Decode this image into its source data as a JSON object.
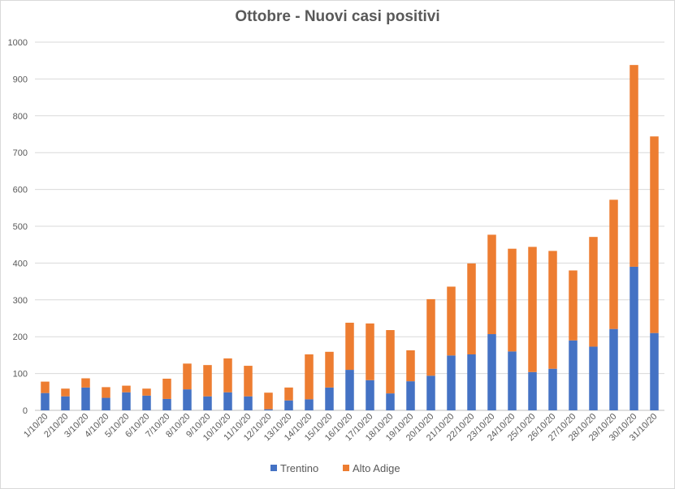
{
  "chart_data": {
    "type": "bar",
    "stacked": true,
    "title": "Ottobre - Nuovi casi positivi",
    "xlabel": "",
    "ylabel": "",
    "ylim": [
      0,
      1000
    ],
    "yticks": [
      0,
      100,
      200,
      300,
      400,
      500,
      600,
      700,
      800,
      900,
      1000
    ],
    "grid": true,
    "legend_position": "bottom",
    "categories": [
      "1/10/20",
      "2/10/20",
      "3/10/20",
      "4/10/20",
      "5/10/20",
      "6/10/20",
      "7/10/20",
      "8/10/20",
      "9/10/20",
      "10/10/20",
      "11/10/20",
      "12/10/20",
      "13/10/20",
      "14/10/20",
      "15/10/20",
      "16/10/20",
      "17/10/20",
      "18/10/20",
      "19/10/20",
      "20/10/20",
      "21/10/20",
      "22/10/20",
      "23/10/20",
      "24/10/20",
      "25/10/20",
      "26/10/20",
      "27/10/20",
      "28/10/20",
      "29/10/20",
      "30/10/20",
      "31/10/20"
    ],
    "series": [
      {
        "name": "Trentino",
        "color": "#4472c4",
        "values": [
          47,
          38,
          62,
          34,
          49,
          40,
          31,
          57,
          38,
          49,
          38,
          3,
          27,
          30,
          62,
          110,
          82,
          46,
          79,
          94,
          149,
          152,
          207,
          160,
          104,
          113,
          190,
          173,
          221,
          390,
          210
        ]
      },
      {
        "name": "Alto Adige",
        "color": "#ed7d31",
        "values": [
          31,
          21,
          25,
          29,
          18,
          19,
          55,
          70,
          85,
          92,
          83,
          45,
          35,
          122,
          97,
          128,
          154,
          172,
          84,
          208,
          187,
          247,
          270,
          279,
          340,
          320,
          190,
          298,
          351,
          548,
          534
        ]
      }
    ]
  }
}
